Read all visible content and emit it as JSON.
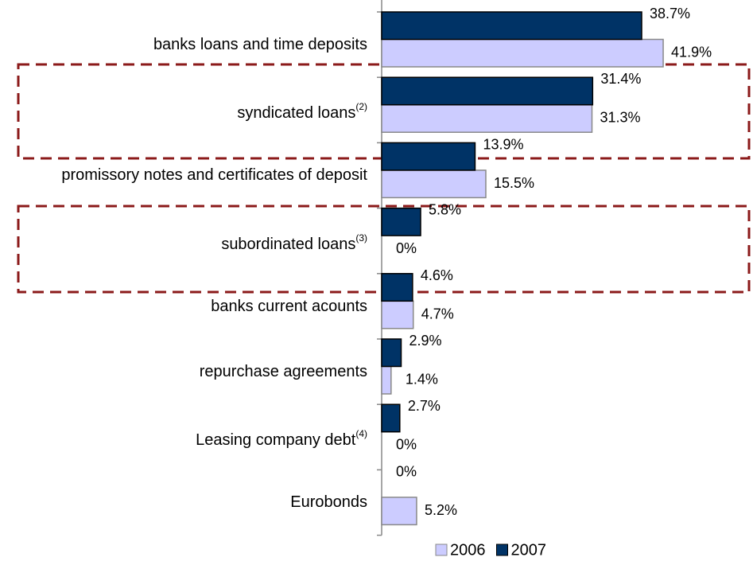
{
  "chart_data": {
    "type": "bar",
    "orientation": "horizontal",
    "categories": [
      "banks loans and time deposits",
      "syndicated loans",
      "promissory notes and certificates of deposit",
      "subordinated loans",
      "banks current acounts",
      "repurchase agreements",
      "Leasing company debt",
      "Eurobonds"
    ],
    "category_notes": [
      null,
      "(2)",
      null,
      "(3)",
      null,
      null,
      "(4)",
      null
    ],
    "series": [
      {
        "name": "2006",
        "color": "#ccccff",
        "values": [
          41.9,
          31.3,
          15.5,
          0,
          4.7,
          1.4,
          0,
          5.2
        ],
        "value_labels": [
          "41.9%",
          "31.3%",
          "15.5%",
          "0%",
          "4.7%",
          "1.4%",
          "0%",
          "5.2%"
        ]
      },
      {
        "name": "2007",
        "color": "#003366",
        "values": [
          38.7,
          31.4,
          13.9,
          5.8,
          4.6,
          2.9,
          2.7,
          0
        ],
        "value_labels": [
          "38.7%",
          "31.4%",
          "13.9%",
          "5.8%",
          "4.6%",
          "2.9%",
          "2.7%",
          "0%"
        ]
      }
    ],
    "legend": "bottom"
  }
}
